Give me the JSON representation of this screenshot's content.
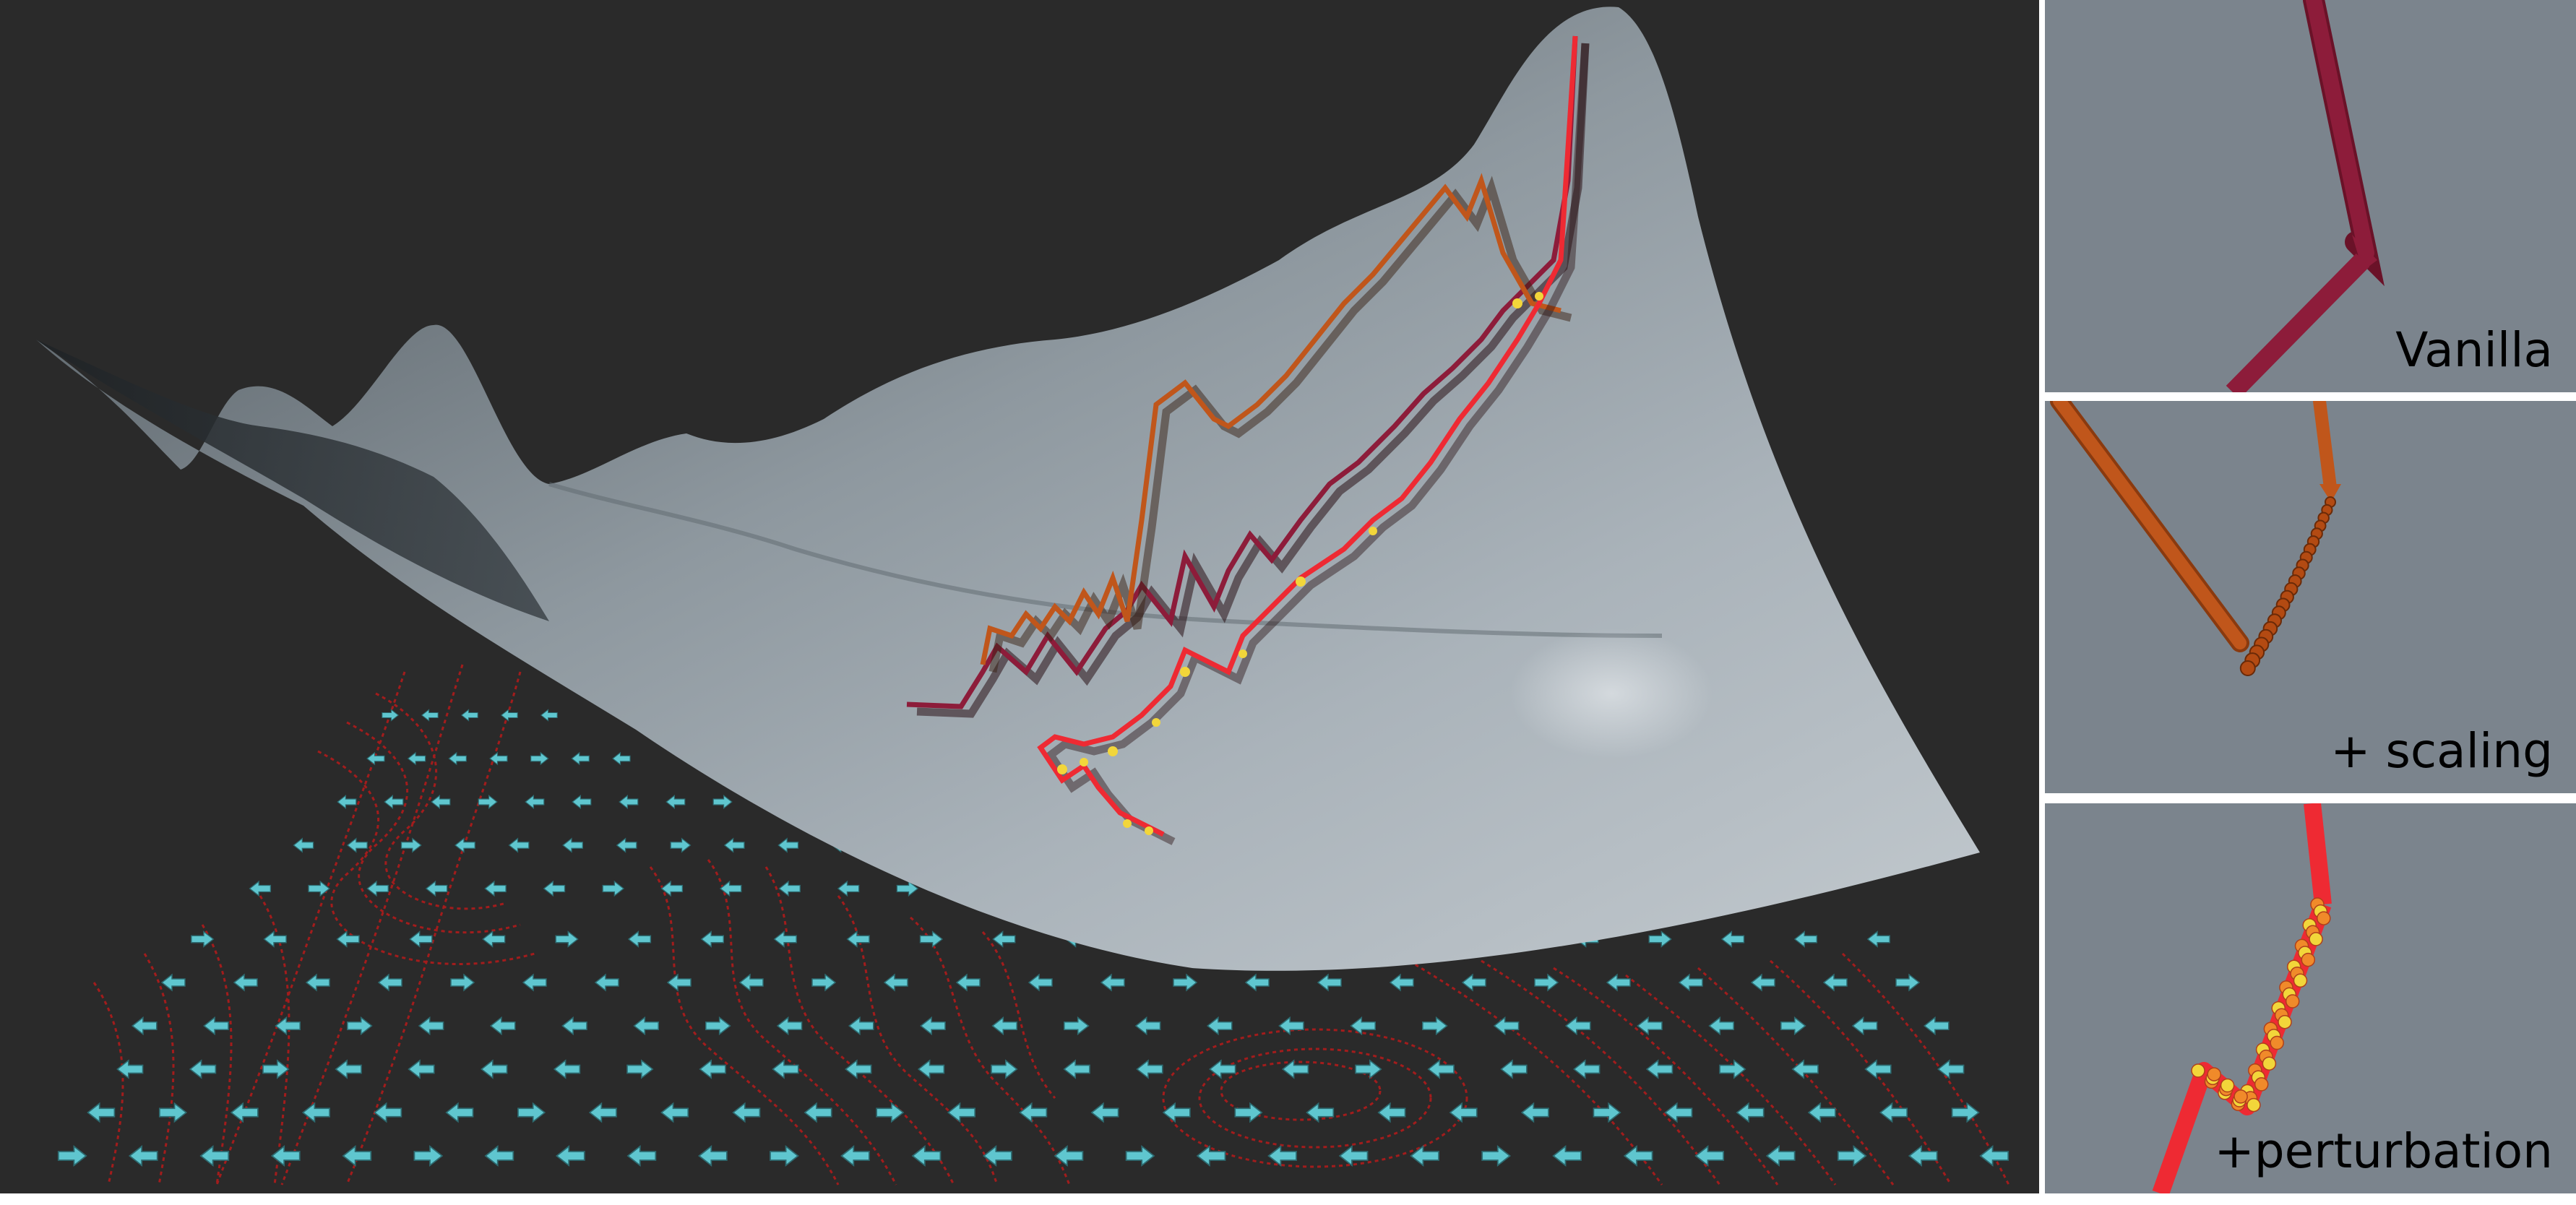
{
  "panels": [
    {
      "label": "Vanilla",
      "path_color": "#8d1c3a"
    },
    {
      "label": "+ scaling",
      "path_color": "#b34a12"
    },
    {
      "label": "+perturbation",
      "path_color": "#ee2a33"
    }
  ],
  "colors": {
    "background": "#2a2a2a",
    "surface": "#9aa4ad",
    "contour": "#b01b1b",
    "arrows": "#5fc6cf",
    "inset_background": "#7b848d",
    "dots": "#f2d63a"
  },
  "icons": [
    "gradient-arrow-icon"
  ]
}
